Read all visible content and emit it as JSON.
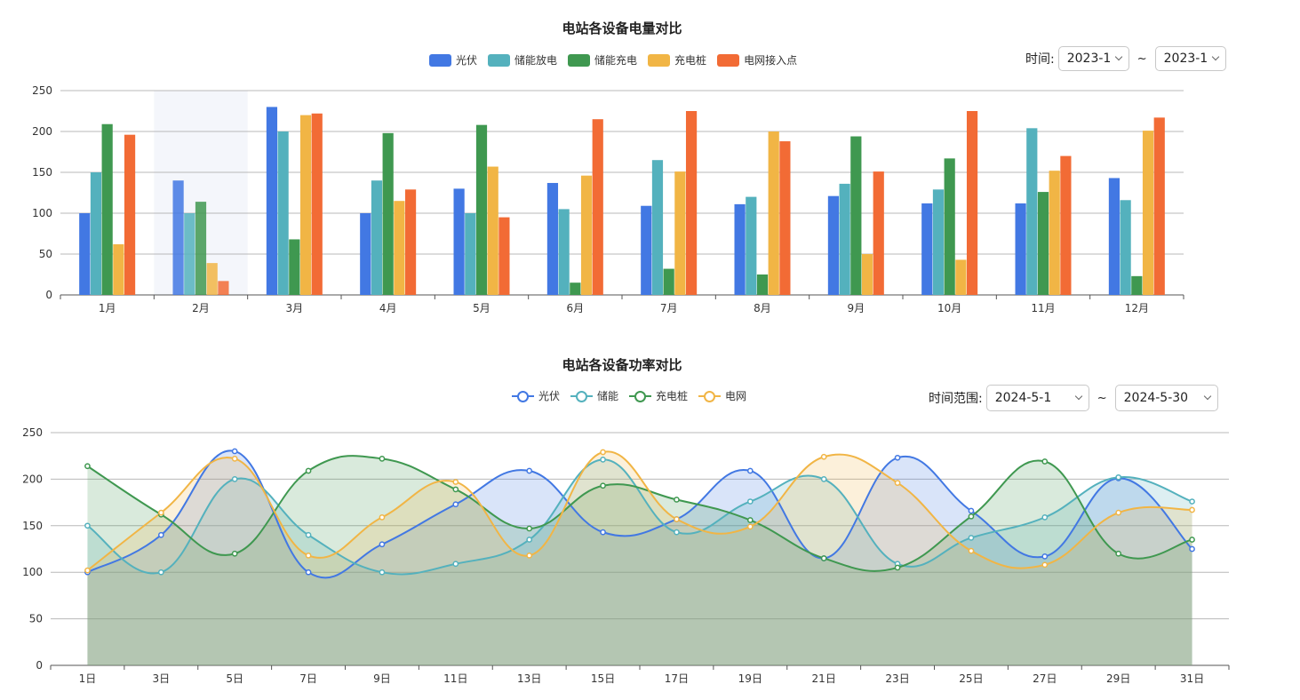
{
  "top": {
    "title": "电站各设备电量对比",
    "range": {
      "label": "时间:",
      "start": "2023-1",
      "end": "2023-1",
      "separator": "~"
    },
    "legend": [
      {
        "name": "光伏",
        "color": "#4278e3"
      },
      {
        "name": "储能放电",
        "color": "#54b1bd"
      },
      {
        "name": "储能充电",
        "color": "#3f9850"
      },
      {
        "name": "充电桩",
        "color": "#f1b545"
      },
      {
        "name": "电网接入点",
        "color": "#f26b35"
      }
    ]
  },
  "bottom": {
    "title": "电站各设备功率对比",
    "range": {
      "label": "时间范围:",
      "start": "2024-5-1",
      "end": "2024-5-30",
      "separator": "~"
    },
    "legend": [
      {
        "name": "光伏",
        "color": "#4278e3"
      },
      {
        "name": "储能",
        "color": "#54b1bd"
      },
      {
        "name": "充电桩",
        "color": "#3f9850"
      },
      {
        "name": "电网",
        "color": "#f1b545"
      }
    ]
  },
  "chart_data": [
    {
      "type": "bar",
      "title": "电站各设备电量对比",
      "categories": [
        "1月",
        "2月",
        "3月",
        "4月",
        "5月",
        "6月",
        "7月",
        "8月",
        "9月",
        "10月",
        "11月",
        "12月"
      ],
      "ylim": [
        0,
        250
      ],
      "yticks": [
        0,
        50,
        100,
        150,
        200,
        250
      ],
      "grid": true,
      "legend_position": "top-center",
      "highlighted_category": "2月",
      "series": [
        {
          "name": "光伏",
          "color": "#4278e3",
          "values": [
            100,
            140,
            230,
            100,
            130,
            137,
            109,
            111,
            121,
            112,
            112,
            143
          ]
        },
        {
          "name": "储能放电",
          "color": "#54b1bd",
          "values": [
            150,
            100,
            200,
            140,
            100,
            105,
            165,
            120,
            136,
            129,
            204,
            116
          ]
        },
        {
          "name": "储能充电",
          "color": "#3f9850",
          "values": [
            209,
            114,
            68,
            198,
            208,
            15,
            32,
            25,
            194,
            167,
            126,
            23
          ]
        },
        {
          "name": "充电桩",
          "color": "#f1b545",
          "values": [
            62,
            39,
            220,
            115,
            157,
            146,
            151,
            200,
            50,
            43,
            152,
            201
          ]
        },
        {
          "name": "电网接入点",
          "color": "#f26b35",
          "values": [
            196,
            17,
            222,
            129,
            95,
            215,
            225,
            188,
            151,
            225,
            170,
            217
          ]
        }
      ]
    },
    {
      "type": "area",
      "title": "电站各设备功率对比",
      "x": [
        "1日",
        "3日",
        "5日",
        "7日",
        "9日",
        "11日",
        "13日",
        "15日",
        "17日",
        "19日",
        "21日",
        "23日",
        "25日",
        "27日",
        "29日",
        "31日"
      ],
      "ylim": [
        0,
        250
      ],
      "yticks": [
        0,
        50,
        100,
        150,
        200,
        250
      ],
      "grid": true,
      "smooth": true,
      "legend_position": "top-center",
      "series": [
        {
          "name": "光伏",
          "color": "#4278e3",
          "values": [
            100,
            140,
            230,
            100,
            130,
            173,
            209,
            143,
            157,
            209,
            115,
            223,
            166,
            117,
            201,
            125
          ]
        },
        {
          "name": "储能",
          "color": "#54b1bd",
          "values": [
            150,
            100,
            200,
            140,
            100,
            109,
            135,
            221,
            143,
            176,
            200,
            109,
            137,
            159,
            202,
            176
          ]
        },
        {
          "name": "充电桩",
          "color": "#3f9850",
          "values": [
            214,
            162,
            120,
            209,
            222,
            189,
            147,
            193,
            178,
            156,
            115,
            105,
            160,
            219,
            120,
            135
          ]
        },
        {
          "name": "电网",
          "color": "#f1b545",
          "values": [
            102,
            164,
            222,
            118,
            159,
            197,
            118,
            229,
            157,
            149,
            224,
            196,
            123,
            108,
            164,
            167
          ]
        }
      ]
    }
  ]
}
